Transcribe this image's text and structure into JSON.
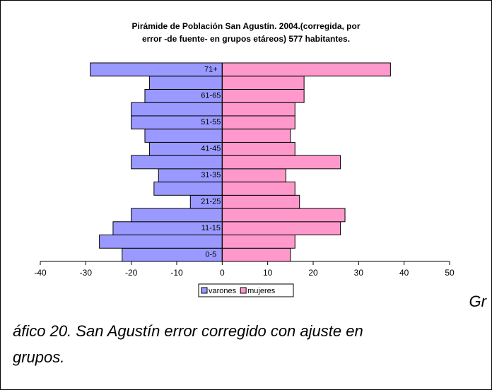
{
  "chart_data": {
    "type": "pyramid",
    "title": [
      "Pirámide de Población San Agustín. 2004.(corregida, por",
      "error -de fuente- en grupos etáreos) 577 habitantes."
    ],
    "categories": [
      "0-5",
      null,
      "11-15",
      null,
      "21-25",
      null,
      "31-35",
      null,
      "41-45",
      null,
      "51-55",
      null,
      "61-65",
      null,
      "71+"
    ],
    "series": [
      {
        "name": "varones",
        "color": "#9999ff",
        "values": [
          -22,
          -27,
          -24,
          -20,
          -7,
          -15,
          -14,
          -20,
          -16,
          -17,
          -20,
          -20,
          -17,
          -16,
          -29
        ]
      },
      {
        "name": "mujeres",
        "color": "#ff99cc",
        "values": [
          15,
          16,
          26,
          27,
          17,
          16,
          14,
          26,
          16,
          15,
          16,
          16,
          18,
          18,
          37
        ]
      }
    ],
    "xlim": [
      -40,
      50
    ],
    "xticks": [
      -40,
      -30,
      -20,
      -10,
      0,
      10,
      20,
      30,
      40,
      50
    ],
    "legend": "bottom",
    "caption": [
      "Gr",
      "áfico 20. San Agustín error corregido con ajuste en",
      "grupos."
    ]
  }
}
